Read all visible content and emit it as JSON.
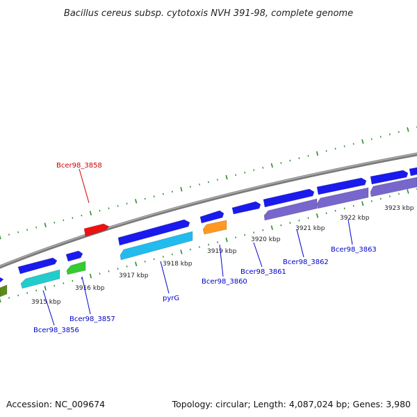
{
  "title": "Bacillus cereus subsp. cytotoxis NVH 391-98, complete genome",
  "footer": {
    "accession": "Accession: NC_009674",
    "summary": "Topology: circular; Length: 4,087,024 bp; Genes: 3,980"
  },
  "colors": {
    "backbone": "#8a8a8a",
    "dotted_track": "#2a8a2a",
    "label_blue": "#0000cc",
    "label_red": "#cc0000"
  },
  "ticks": [
    "3915 kbp",
    "3916 kbp",
    "3917 kbp",
    "3918 kbp",
    "3919 kbp",
    "3920 kbp",
    "3921 kbp",
    "3922 kbp",
    "3923 kbp"
  ],
  "gene_labels": [
    "Bcer98_3858",
    "Bcer98_3856",
    "Bcer98_3857",
    "pyrG",
    "Bcer98_3860",
    "Bcer98_3861",
    "Bcer98_3862",
    "Bcer98_3863"
  ],
  "features": [
    {
      "strand": "forward",
      "color": "#1a1aee"
    },
    {
      "strand": "forward",
      "color": "#1a1aee"
    },
    {
      "strand": "forward",
      "color": "#1a1aee"
    },
    {
      "strand": "forward",
      "color": "#1a1aee"
    },
    {
      "strand": "forward",
      "color": "#1a1aee"
    },
    {
      "strand": "forward",
      "color": "#1a1aee"
    },
    {
      "strand": "forward",
      "color": "#1a1aee"
    },
    {
      "strand": "forward",
      "color": "#1a1aee"
    },
    {
      "strand": "forward",
      "color": "#1a1aee"
    },
    {
      "strand": "forward",
      "color": "#1a1aee"
    },
    {
      "strand": "forward",
      "color": "#ee1111"
    },
    {
      "strand": "reverse",
      "color": "#5a8a1a"
    },
    {
      "strand": "reverse",
      "color": "#22cccc"
    },
    {
      "strand": "reverse",
      "color": "#33cc33"
    },
    {
      "strand": "reverse",
      "color": "#22bbee"
    },
    {
      "strand": "reverse",
      "color": "#ff9922"
    },
    {
      "strand": "reverse",
      "color": "#7766cc"
    },
    {
      "strand": "reverse",
      "color": "#7766cc"
    },
    {
      "strand": "reverse",
      "color": "#7766cc"
    }
  ]
}
